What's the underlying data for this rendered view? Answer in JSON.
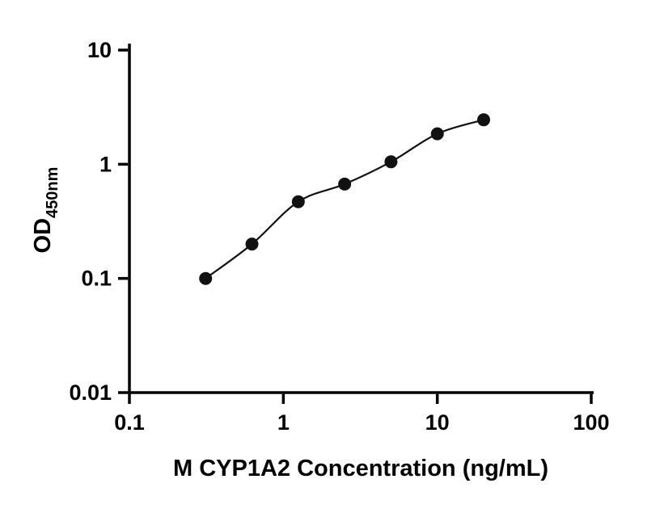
{
  "chart_data": {
    "type": "scatter",
    "title": "",
    "xlabel": "M CYP1A2 Concentration (ng/mL)",
    "ylabel_main": "OD",
    "ylabel_sub": "450nm",
    "x_scale": "log",
    "y_scale": "log",
    "xlim": [
      0.1,
      100
    ],
    "ylim": [
      0.01,
      10
    ],
    "x_ticks": [
      0.1,
      1,
      10,
      100
    ],
    "x_tick_labels": [
      "0.1",
      "1",
      "10",
      "100"
    ],
    "y_ticks": [
      0.01,
      0.1,
      1,
      10
    ],
    "y_tick_labels": [
      "0.01",
      "0.1",
      "1",
      "10"
    ],
    "grid": "off",
    "legend": "none",
    "marker_color": "#111111",
    "line_color": "#111111",
    "points": [
      {
        "x": 0.3125,
        "y": 0.1
      },
      {
        "x": 0.625,
        "y": 0.2
      },
      {
        "x": 1.25,
        "y": 0.47
      },
      {
        "x": 2.5,
        "y": 0.67
      },
      {
        "x": 5,
        "y": 1.05
      },
      {
        "x": 10,
        "y": 1.85
      },
      {
        "x": 20,
        "y": 2.45
      }
    ]
  }
}
